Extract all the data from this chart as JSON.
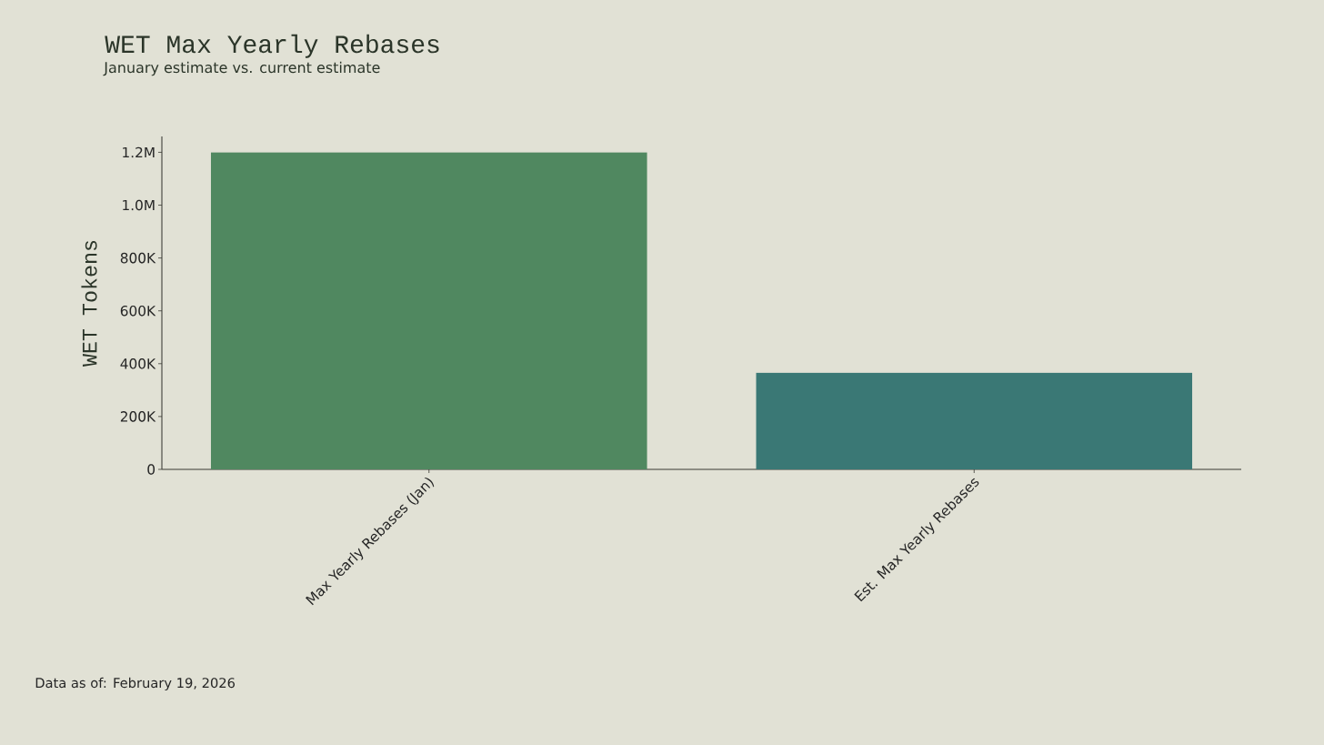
{
  "chart_data": {
    "type": "bar",
    "title": "WET Max Yearly Rebases",
    "subtitle": "January estimate vs. current estimate",
    "ylabel": "WET Tokens",
    "categories": [
      "Max Yearly Rebases (Jan)",
      "Est. Max Yearly Rebases"
    ],
    "values": [
      1200000,
      366000
    ],
    "colors": [
      "#508860",
      "#3a7875"
    ],
    "ylim": [
      0,
      1260000
    ],
    "yticks": [
      0,
      {
        "value": 200000,
        "label": "200K"
      },
      {
        "value": 400000,
        "label": "400K"
      },
      {
        "value": 600000,
        "label": "600K"
      },
      {
        "value": 800000,
        "label": "800K"
      },
      {
        "value": 1000000,
        "label": "1.0M"
      },
      {
        "value": 1200000,
        "label": "1.2M"
      }
    ],
    "annotations": [
      "Data as of: February 19, 2026"
    ]
  }
}
